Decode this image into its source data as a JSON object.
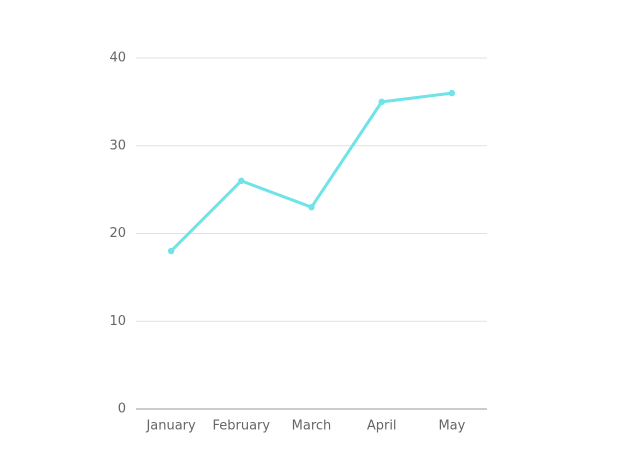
{
  "chart_data": {
    "type": "line",
    "categories": [
      "January",
      "February",
      "March",
      "April",
      "May"
    ],
    "values": [
      18,
      26,
      23,
      35,
      36
    ],
    "color": "#6fe3e8",
    "ylim": [
      0,
      40
    ],
    "yticks": [
      0,
      10,
      20,
      30,
      40
    ],
    "grid": true
  }
}
